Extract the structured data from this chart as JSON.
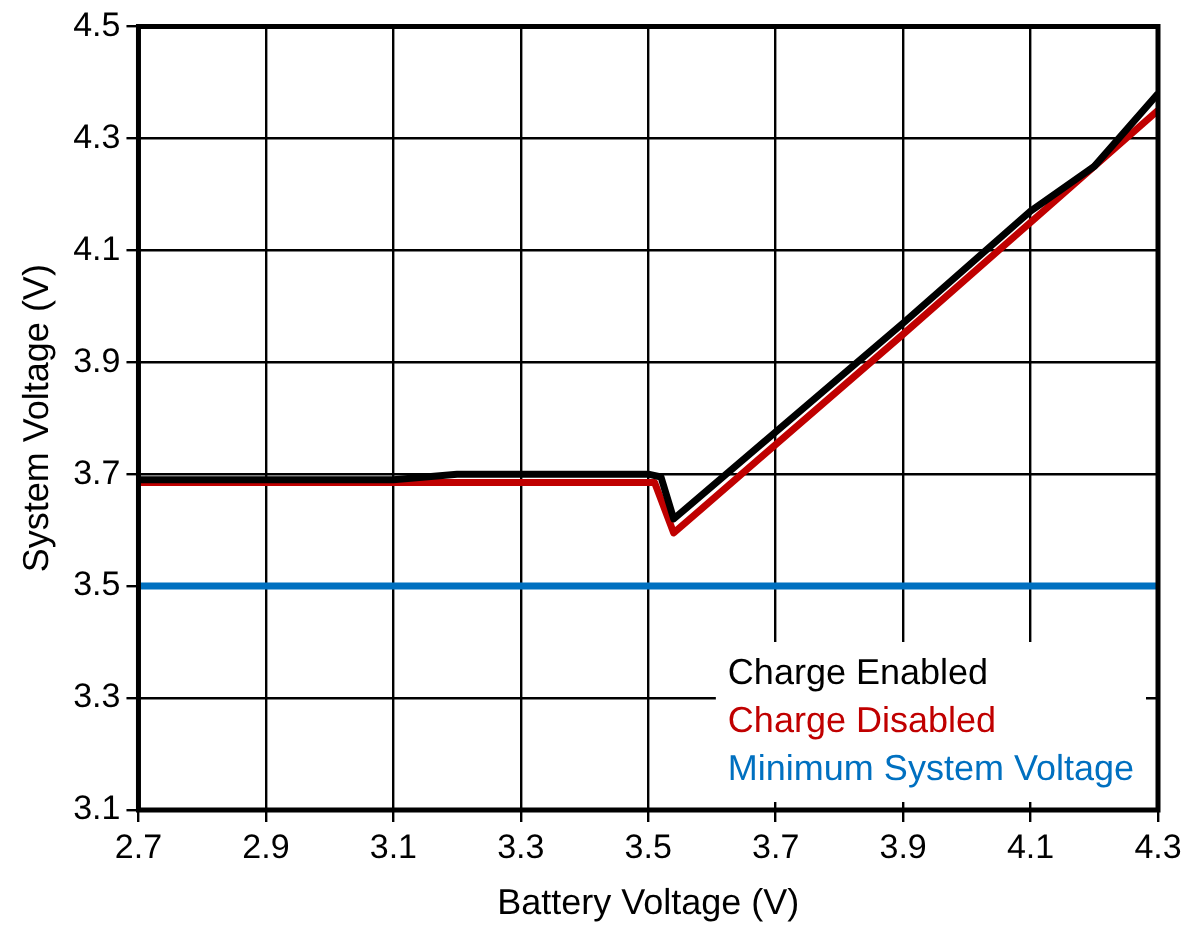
{
  "chart_data": {
    "type": "line",
    "xlabel": "Battery Voltage (V)",
    "ylabel": "System Voltage (V)",
    "xlim": [
      2.7,
      4.3
    ],
    "xticks": [
      2.7,
      2.9,
      3.1,
      3.3,
      3.5,
      3.7,
      3.9,
      4.1,
      4.3
    ],
    "ylim": [
      3.1,
      4.5
    ],
    "yticks": [
      3.1,
      3.3,
      3.5,
      3.7,
      3.9,
      4.1,
      4.3,
      4.5
    ],
    "grid": true,
    "legend": "bottom right",
    "marker": "none",
    "line_style": "solid",
    "series": [
      {
        "name": "Charge Enabled",
        "color": "#000000",
        "x": [
          2.7,
          3.1,
          3.15,
          3.2,
          3.5,
          3.52,
          3.54,
          3.9,
          4.1,
          4.2,
          4.3
        ],
        "values": [
          3.69,
          3.69,
          3.695,
          3.7,
          3.7,
          3.695,
          3.62,
          3.97,
          4.17,
          4.25,
          4.38
        ]
      },
      {
        "name": "Charge Disabled",
        "color": "#c00000",
        "x": [
          2.7,
          3.51,
          3.54,
          3.9,
          4.1,
          4.3
        ],
        "values": [
          3.685,
          3.685,
          3.595,
          3.95,
          4.15,
          4.35
        ]
      },
      {
        "name": "Minimum System Voltage",
        "color": "#0070c0",
        "x": [
          2.7,
          4.3
        ],
        "values": [
          3.5,
          3.5
        ]
      }
    ]
  }
}
